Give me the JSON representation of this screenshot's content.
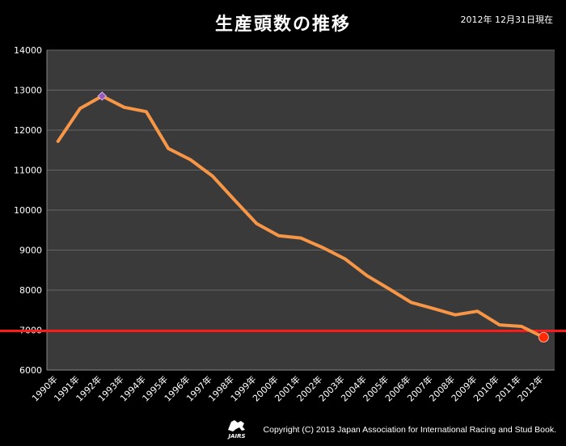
{
  "chart_data": {
    "type": "line",
    "title": "生産頭数の推移",
    "subtitle": "2012年 12月31日現在",
    "categories": [
      "1990年",
      "1991年",
      "1992年",
      "1993年",
      "1994年",
      "1995年",
      "1996年",
      "1997年",
      "1998年",
      "1999年",
      "2000年",
      "2001年",
      "2002年",
      "2003年",
      "2004年",
      "2005年",
      "2006年",
      "2007年",
      "2008年",
      "2009年",
      "2010年",
      "2011年",
      "2012年"
    ],
    "series": [
      {
        "values": [
          11720,
          12540,
          12850,
          12570,
          12460,
          11540,
          11260,
          10850,
          10250,
          9660,
          9360,
          9300,
          9060,
          8780,
          8360,
          8030,
          7690,
          7540,
          7380,
          7470,
          7130,
          7090,
          6820
        ]
      }
    ],
    "yticks": [
      6000,
      7000,
      8000,
      9000,
      10000,
      11000,
      12000,
      13000,
      14000
    ],
    "ylim": [
      6000,
      14000
    ],
    "reference_line": 6980,
    "highlight_max_index": 2,
    "highlight_last_index": 22,
    "grid": true,
    "colors": {
      "line": "#f79646",
      "plot_bg": "#3a3a3a",
      "grid": "#666666",
      "reference": "#ff1a1a",
      "max_marker": "#9b59b6",
      "last_marker": "#ff2a00"
    }
  },
  "footer": {
    "copyright": "Copyright (C) 2013 Japan Association for International Racing and Stud Book.",
    "logo_text": "JAIRS"
  }
}
